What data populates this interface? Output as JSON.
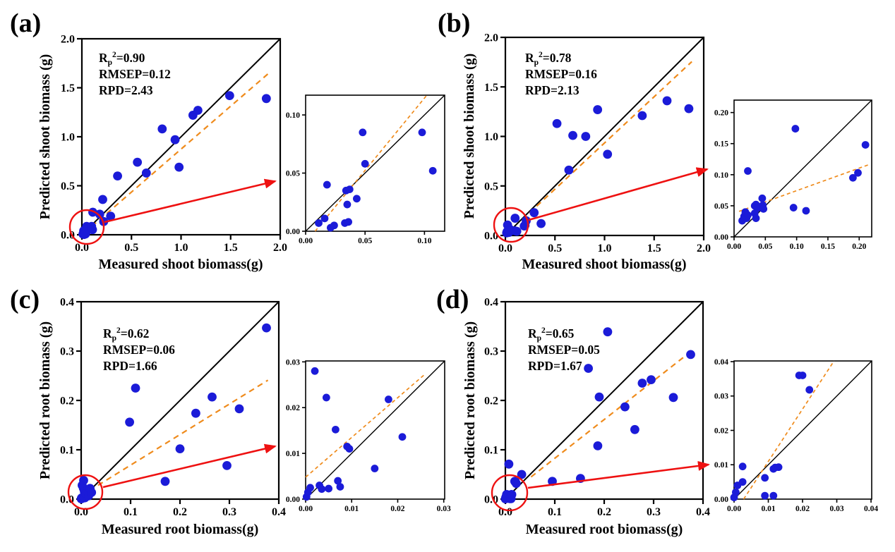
{
  "figure": {
    "background": "#ffffff"
  },
  "colors": {
    "point": "#1b1bd8",
    "identity": "#000000",
    "regression": "#ef8b1c",
    "highlight": "#ee1111",
    "axis": "#000000"
  },
  "chart_data": [
    {
      "panel": "a",
      "label": "(a)",
      "type": "scatter",
      "stats": {
        "r2_base": "R",
        "r2_sub": "p",
        "r2_sup": "2",
        "r2_rest": "=0.90",
        "rmsep": "RMSEP=0.12",
        "rpd": "RPD=2.43"
      },
      "xlabel": "Measured shoot biomass(g)",
      "ylabel": "Predicted shoot biomass (g)",
      "xlim": [
        0,
        2.0
      ],
      "ylim": [
        0,
        2.0
      ],
      "xticks": [
        {
          "v": 0,
          "t": "0.0"
        },
        {
          "v": 0.5,
          "t": "0.5"
        },
        {
          "v": 1.0,
          "t": "1.0"
        },
        {
          "v": 1.5,
          "t": "1.5"
        },
        {
          "v": 2.0,
          "t": "2.0"
        }
      ],
      "yticks": [
        {
          "v": 0,
          "t": "0.0"
        },
        {
          "v": 0.5,
          "t": "0.5"
        },
        {
          "v": 1.0,
          "t": "1.0"
        },
        {
          "v": 1.5,
          "t": "1.5"
        },
        {
          "v": 2.0,
          "t": "2.0"
        }
      ],
      "identity": true,
      "fit_line": [
        0.1,
        0.085,
        1.88,
        1.645
      ],
      "points": [
        [
          0.011,
          0.007
        ],
        [
          0.016,
          0.011
        ],
        [
          0.018,
          0.04
        ],
        [
          0.021,
          0.003
        ],
        [
          0.024,
          0.005
        ],
        [
          0.033,
          0.007
        ],
        [
          0.036,
          0.008
        ],
        [
          0.034,
          0.035
        ],
        [
          0.037,
          0.036
        ],
        [
          0.043,
          0.028
        ],
        [
          0.035,
          0.023
        ],
        [
          0.048,
          0.085
        ],
        [
          0.05,
          0.058
        ],
        [
          0.098,
          0.085
        ],
        [
          0.107,
          0.052
        ],
        [
          0.11,
          0.23
        ],
        [
          0.18,
          0.21
        ],
        [
          0.21,
          0.36
        ],
        [
          0.22,
          0.135
        ],
        [
          0.29,
          0.19
        ],
        [
          0.36,
          0.6
        ],
        [
          0.56,
          0.74
        ],
        [
          0.65,
          0.63
        ],
        [
          0.81,
          1.08
        ],
        [
          0.94,
          0.97
        ],
        [
          0.98,
          0.69
        ],
        [
          1.12,
          1.22
        ],
        [
          1.17,
          1.27
        ],
        [
          1.49,
          1.42
        ],
        [
          1.86,
          1.39
        ]
      ],
      "inset": {
        "xlim": [
          0,
          0.117
        ],
        "ylim": [
          0,
          0.117
        ],
        "xticks": [
          {
            "v": 0,
            "t": "0.00"
          },
          {
            "v": 0.05,
            "t": "0.05"
          },
          {
            "v": 0.1,
            "t": "0.10"
          }
        ],
        "yticks": [
          {
            "v": 0,
            "t": "0.00"
          },
          {
            "v": 0.05,
            "t": "0.05"
          },
          {
            "v": 0.1,
            "t": "0.10"
          }
        ],
        "fit_line": [
          0.008,
          0.0,
          0.102,
          0.117
        ],
        "points": [
          [
            0.011,
            0.007
          ],
          [
            0.016,
            0.011
          ],
          [
            0.018,
            0.04
          ],
          [
            0.021,
            0.003
          ],
          [
            0.024,
            0.005
          ],
          [
            0.033,
            0.007
          ],
          [
            0.036,
            0.008
          ],
          [
            0.034,
            0.035
          ],
          [
            0.037,
            0.036
          ],
          [
            0.043,
            0.028
          ],
          [
            0.035,
            0.023
          ],
          [
            0.048,
            0.085
          ],
          [
            0.05,
            0.058
          ],
          [
            0.098,
            0.085
          ],
          [
            0.107,
            0.052
          ]
        ]
      }
    },
    {
      "panel": "b",
      "label": "(b)",
      "type": "scatter",
      "stats": {
        "r2_base": "R",
        "r2_sub": "p",
        "r2_sup": "2",
        "r2_rest": "=0.78",
        "rmsep": "RMSEP=0.16",
        "rpd": "RPD=2.13"
      },
      "xlabel": "Measured shoot biomass(g)",
      "ylabel": "Predicted shoot biomass (g)",
      "xlim": [
        0,
        2.0
      ],
      "ylim": [
        0,
        2.0
      ],
      "xticks": [
        {
          "v": 0,
          "t": "0.0"
        },
        {
          "v": 0.5,
          "t": "0.5"
        },
        {
          "v": 1.0,
          "t": "1.0"
        },
        {
          "v": 1.5,
          "t": "1.5"
        },
        {
          "v": 2.0,
          "t": "2.0"
        }
      ],
      "yticks": [
        {
          "v": 0,
          "t": "0.0"
        },
        {
          "v": 0.5,
          "t": "0.5"
        },
        {
          "v": 1.0,
          "t": "1.0"
        },
        {
          "v": 1.5,
          "t": "1.5"
        },
        {
          "v": 2.0,
          "t": "2.0"
        }
      ],
      "identity": true,
      "fit_line": [
        0.17,
        0.16,
        1.88,
        1.755
      ],
      "points": [
        [
          0.013,
          0.026
        ],
        [
          0.016,
          0.033
        ],
        [
          0.018,
          0.04
        ],
        [
          0.02,
          0.03
        ],
        [
          0.022,
          0.035
        ],
        [
          0.022,
          0.106
        ],
        [
          0.033,
          0.05
        ],
        [
          0.035,
          0.052
        ],
        [
          0.037,
          0.046
        ],
        [
          0.033,
          0.038
        ],
        [
          0.035,
          0.03
        ],
        [
          0.045,
          0.062
        ],
        [
          0.046,
          0.051
        ],
        [
          0.047,
          0.045
        ],
        [
          0.095,
          0.047
        ],
        [
          0.115,
          0.042
        ],
        [
          0.098,
          0.174
        ],
        [
          0.19,
          0.095
        ],
        [
          0.198,
          0.103
        ],
        [
          0.21,
          0.148
        ],
        [
          0.29,
          0.23
        ],
        [
          0.36,
          0.12
        ],
        [
          0.52,
          1.13
        ],
        [
          0.64,
          0.66
        ],
        [
          0.68,
          1.01
        ],
        [
          0.81,
          1.0
        ],
        [
          0.93,
          1.27
        ],
        [
          1.03,
          0.82
        ],
        [
          1.38,
          1.21
        ],
        [
          1.63,
          1.36
        ],
        [
          1.85,
          1.28
        ]
      ],
      "inset": {
        "xlim": [
          0,
          0.22
        ],
        "ylim": [
          0,
          0.22
        ],
        "xticks": [
          {
            "v": 0,
            "t": "0.00"
          },
          {
            "v": 0.05,
            "t": "0.05"
          },
          {
            "v": 0.1,
            "t": "0.10"
          },
          {
            "v": 0.15,
            "t": "0.15"
          },
          {
            "v": 0.2,
            "t": "0.20"
          }
        ],
        "yticks": [
          {
            "v": 0,
            "t": "0.00"
          },
          {
            "v": 0.05,
            "t": "0.05"
          },
          {
            "v": 0.1,
            "t": "0.10"
          },
          {
            "v": 0.15,
            "t": "0.15"
          },
          {
            "v": 0.2,
            "t": "0.20"
          }
        ],
        "fit_line": [
          0.008,
          0.041,
          0.215,
          0.116
        ],
        "points": [
          [
            0.013,
            0.026
          ],
          [
            0.016,
            0.033
          ],
          [
            0.018,
            0.04
          ],
          [
            0.02,
            0.03
          ],
          [
            0.022,
            0.035
          ],
          [
            0.022,
            0.106
          ],
          [
            0.033,
            0.05
          ],
          [
            0.035,
            0.052
          ],
          [
            0.037,
            0.046
          ],
          [
            0.033,
            0.038
          ],
          [
            0.035,
            0.03
          ],
          [
            0.045,
            0.062
          ],
          [
            0.046,
            0.051
          ],
          [
            0.047,
            0.045
          ],
          [
            0.095,
            0.047
          ],
          [
            0.115,
            0.042
          ],
          [
            0.098,
            0.174
          ],
          [
            0.19,
            0.095
          ],
          [
            0.198,
            0.103
          ],
          [
            0.21,
            0.148
          ]
        ]
      }
    },
    {
      "panel": "c",
      "label": "(c)",
      "type": "scatter",
      "stats": {
        "r2_base": "R",
        "r2_sub": "p",
        "r2_sup": "2",
        "r2_rest": "=0.62",
        "rmsep": "RMSEP=0.06",
        "rpd": "RPD=1.66"
      },
      "xlabel": "Measured root biomass(g)",
      "ylabel": "Predicted root biomass (g)",
      "xlim": [
        0,
        0.4
      ],
      "ylim": [
        0,
        0.4
      ],
      "xticks": [
        {
          "v": 0,
          "t": "0.0"
        },
        {
          "v": 0.1,
          "t": "0.1"
        },
        {
          "v": 0.2,
          "t": "0.2"
        },
        {
          "v": 0.3,
          "t": "0.3"
        },
        {
          "v": 0.4,
          "t": "0.4"
        }
      ],
      "yticks": [
        {
          "v": 0,
          "t": "0.0"
        },
        {
          "v": 0.1,
          "t": "0.1"
        },
        {
          "v": 0.2,
          "t": "0.2"
        },
        {
          "v": 0.3,
          "t": "0.3"
        },
        {
          "v": 0.4,
          "t": "0.4"
        }
      ],
      "identity": true,
      "fit_line": [
        0.034,
        0.028,
        0.378,
        0.241
      ],
      "points": [
        [
          0.0002,
          0.0005
        ],
        [
          0.0005,
          0.0015
        ],
        [
          0.001,
          0.0025
        ],
        [
          0.002,
          0.028
        ],
        [
          0.003,
          0.003
        ],
        [
          0.0035,
          0.0022
        ],
        [
          0.0045,
          0.0222
        ],
        [
          0.005,
          0.0023
        ],
        [
          0.0065,
          0.0152
        ],
        [
          0.007,
          0.004
        ],
        [
          0.0075,
          0.0027
        ],
        [
          0.009,
          0.0115
        ],
        [
          0.0095,
          0.011
        ],
        [
          0.015,
          0.0067
        ],
        [
          0.018,
          0.0218
        ],
        [
          0.021,
          0.0136
        ],
        [
          0.005,
          0.038
        ],
        [
          0.098,
          0.156
        ],
        [
          0.11,
          0.225
        ],
        [
          0.17,
          0.036
        ],
        [
          0.2,
          0.102
        ],
        [
          0.232,
          0.174
        ],
        [
          0.265,
          0.207
        ],
        [
          0.295,
          0.068
        ],
        [
          0.32,
          0.183
        ],
        [
          0.375,
          0.347
        ]
      ],
      "inset": {
        "xlim": [
          0,
          0.0302
        ],
        "ylim": [
          0,
          0.0302
        ],
        "xticks": [
          {
            "v": 0,
            "t": "0.00"
          },
          {
            "v": 0.01,
            "t": "0.01"
          },
          {
            "v": 0.02,
            "t": "0.02"
          },
          {
            "v": 0.03,
            "t": "0.03"
          }
        ],
        "yticks": [
          {
            "v": 0,
            "t": "0.00"
          },
          {
            "v": 0.01,
            "t": "0.01"
          },
          {
            "v": 0.02,
            "t": "0.02"
          },
          {
            "v": 0.03,
            "t": "0.03"
          }
        ],
        "fit_line": [
          0.0,
          0.0048,
          0.0258,
          0.0272
        ],
        "points": [
          [
            0.0002,
            0.0005
          ],
          [
            0.0005,
            0.0015
          ],
          [
            0.001,
            0.0025
          ],
          [
            0.002,
            0.028
          ],
          [
            0.003,
            0.003
          ],
          [
            0.0035,
            0.0022
          ],
          [
            0.0045,
            0.0222
          ],
          [
            0.005,
            0.0023
          ],
          [
            0.0065,
            0.0152
          ],
          [
            0.007,
            0.004
          ],
          [
            0.0075,
            0.0027
          ],
          [
            0.009,
            0.0115
          ],
          [
            0.0095,
            0.011
          ],
          [
            0.015,
            0.0067
          ],
          [
            0.018,
            0.0218
          ],
          [
            0.021,
            0.0136
          ]
        ]
      }
    },
    {
      "panel": "d",
      "label": "(d)",
      "type": "scatter",
      "stats": {
        "r2_base": "R",
        "r2_sub": "p",
        "r2_sup": "2",
        "r2_rest": "=0.65",
        "rmsep": "RMSEP=0.05",
        "rpd": "RPD=1.67"
      },
      "xlabel": "Measured root biomass(g)",
      "ylabel": "Predicted root biomass (g)",
      "xlim": [
        0,
        0.4
      ],
      "ylim": [
        0,
        0.4
      ],
      "xticks": [
        {
          "v": 0,
          "t": "0.0"
        },
        {
          "v": 0.1,
          "t": "0.1"
        },
        {
          "v": 0.2,
          "t": "0.2"
        },
        {
          "v": 0.3,
          "t": "0.3"
        },
        {
          "v": 0.4,
          "t": "0.4"
        }
      ],
      "yticks": [
        {
          "v": 0,
          "t": "0.0"
        },
        {
          "v": 0.1,
          "t": "0.1"
        },
        {
          "v": 0.2,
          "t": "0.2"
        },
        {
          "v": 0.3,
          "t": "0.3"
        },
        {
          "v": 0.4,
          "t": "0.4"
        }
      ],
      "identity": true,
      "fit_line": [
        0.052,
        0.045,
        0.374,
        0.298
      ],
      "points": [
        [
          0.0,
          0.0005
        ],
        [
          0.0005,
          0.002
        ],
        [
          0.001,
          0.004
        ],
        [
          0.0025,
          0.005
        ],
        [
          0.0025,
          0.0095
        ],
        [
          0.009,
          0.0062
        ],
        [
          0.009,
          0.001
        ],
        [
          0.0115,
          0.001
        ],
        [
          0.0115,
          0.0088
        ],
        [
          0.012,
          0.0092
        ],
        [
          0.013,
          0.0093
        ],
        [
          0.019,
          0.036
        ],
        [
          0.02,
          0.036
        ],
        [
          0.022,
          0.0318
        ],
        [
          0.007,
          0.071
        ],
        [
          0.033,
          0.05
        ],
        [
          0.095,
          0.036
        ],
        [
          0.152,
          0.042
        ],
        [
          0.168,
          0.265
        ],
        [
          0.187,
          0.108
        ],
        [
          0.19,
          0.207
        ],
        [
          0.207,
          0.339
        ],
        [
          0.242,
          0.187
        ],
        [
          0.262,
          0.141
        ],
        [
          0.277,
          0.235
        ],
        [
          0.295,
          0.242
        ],
        [
          0.34,
          0.206
        ],
        [
          0.375,
          0.293
        ]
      ],
      "inset": {
        "xlim": [
          0,
          0.0402
        ],
        "ylim": [
          0,
          0.0402
        ],
        "xticks": [
          {
            "v": 0,
            "t": "0.00"
          },
          {
            "v": 0.01,
            "t": "0.01"
          },
          {
            "v": 0.02,
            "t": "0.02"
          },
          {
            "v": 0.03,
            "t": "0.03"
          },
          {
            "v": 0.04,
            "t": "0.04"
          }
        ],
        "yticks": [
          {
            "v": 0,
            "t": "0.00"
          },
          {
            "v": 0.01,
            "t": "0.01"
          },
          {
            "v": 0.02,
            "t": "0.02"
          },
          {
            "v": 0.03,
            "t": "0.03"
          },
          {
            "v": 0.04,
            "t": "0.04"
          }
        ],
        "fit_line": [
          0.0028,
          0.0,
          0.0292,
          0.0402
        ],
        "points": [
          [
            0.0,
            0.0005
          ],
          [
            0.0005,
            0.002
          ],
          [
            0.001,
            0.004
          ],
          [
            0.0025,
            0.005
          ],
          [
            0.0025,
            0.0095
          ],
          [
            0.009,
            0.0062
          ],
          [
            0.009,
            0.001
          ],
          [
            0.0115,
            0.001
          ],
          [
            0.0115,
            0.0088
          ],
          [
            0.012,
            0.0092
          ],
          [
            0.013,
            0.0093
          ],
          [
            0.019,
            0.036
          ],
          [
            0.02,
            0.036
          ],
          [
            0.022,
            0.0318
          ]
        ]
      }
    }
  ]
}
